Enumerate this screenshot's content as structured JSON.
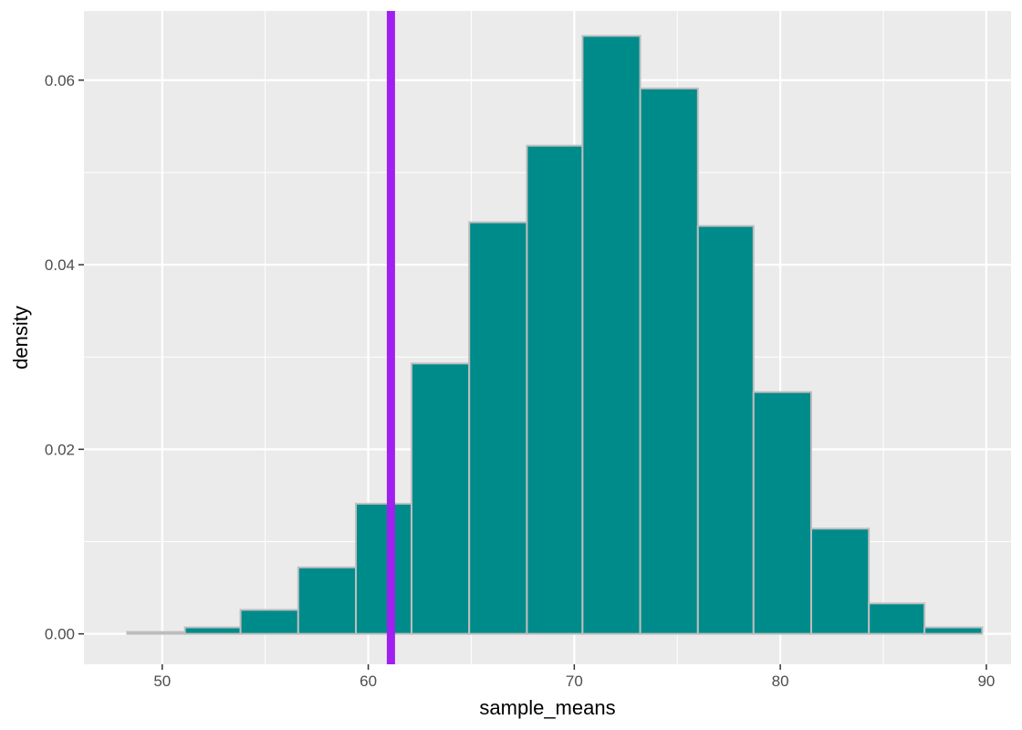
{
  "chart_data": {
    "type": "bar",
    "subtype": "histogram",
    "xlabel": "sample_means",
    "ylabel": "density",
    "xlim": [
      46.2,
      91.2
    ],
    "ylim": [
      -0.0033,
      0.0675
    ],
    "x_ticks": [
      50,
      60,
      70,
      80,
      90
    ],
    "y_ticks": [
      0.0,
      0.02,
      0.04,
      0.06
    ],
    "x_tick_labels": [
      "50",
      "60",
      "70",
      "80",
      "90"
    ],
    "y_tick_labels": [
      "0.00",
      "0.02",
      "0.04",
      "0.06"
    ],
    "bins": [
      {
        "x0": 48.3,
        "x1": 51.1,
        "density": 0.0002
      },
      {
        "x0": 51.1,
        "x1": 53.8,
        "density": 0.0007
      },
      {
        "x0": 53.8,
        "x1": 56.6,
        "density": 0.0026
      },
      {
        "x0": 56.6,
        "x1": 59.4,
        "density": 0.0072
      },
      {
        "x0": 59.4,
        "x1": 62.1,
        "density": 0.0141
      },
      {
        "x0": 62.1,
        "x1": 64.9,
        "density": 0.0293
      },
      {
        "x0": 64.9,
        "x1": 67.7,
        "density": 0.0446
      },
      {
        "x0": 67.7,
        "x1": 70.4,
        "density": 0.0529
      },
      {
        "x0": 70.4,
        "x1": 73.2,
        "density": 0.0648
      },
      {
        "x0": 73.2,
        "x1": 76.0,
        "density": 0.0591
      },
      {
        "x0": 76.0,
        "x1": 78.7,
        "density": 0.0442
      },
      {
        "x0": 78.7,
        "x1": 81.5,
        "density": 0.0262
      },
      {
        "x0": 81.5,
        "x1": 84.3,
        "density": 0.0114
      },
      {
        "x0": 84.3,
        "x1": 87.0,
        "density": 0.0033
      },
      {
        "x0": 87.0,
        "x1": 89.8,
        "density": 0.0007
      }
    ],
    "vline": {
      "x": 61.1,
      "color": "#a020f0"
    },
    "bar_fill": "#008b8b",
    "bar_outline": "#bebebe",
    "panel_background": "#ebebeb",
    "grid": true,
    "grid_color": "#ffffff",
    "legend": "none"
  }
}
